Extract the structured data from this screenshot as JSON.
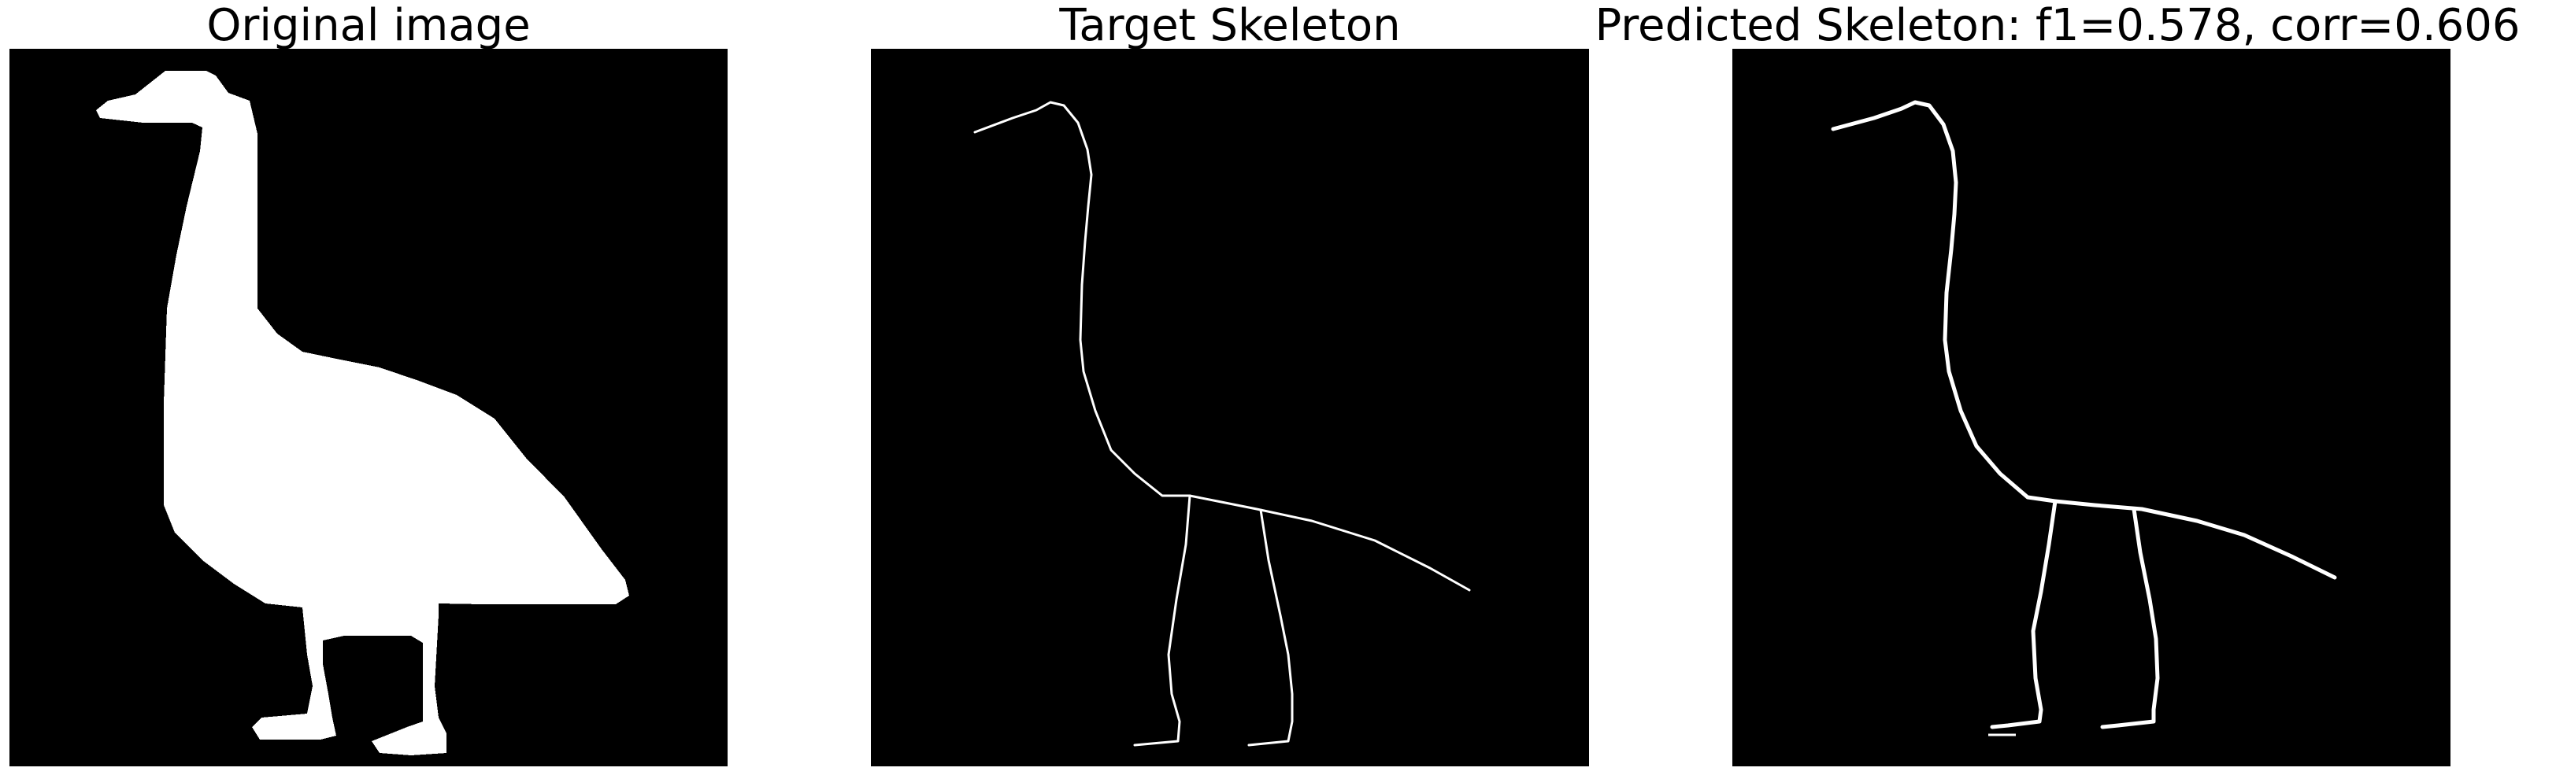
{
  "panels": [
    {
      "title": "Original image"
    },
    {
      "title": "Target Skeleton"
    },
    {
      "title": "Predicted Skeleton: f1=0.578, corr=0.606"
    }
  ],
  "colors": {
    "background": "#000000",
    "foreground": "#ffffff",
    "page": "#ffffff"
  }
}
